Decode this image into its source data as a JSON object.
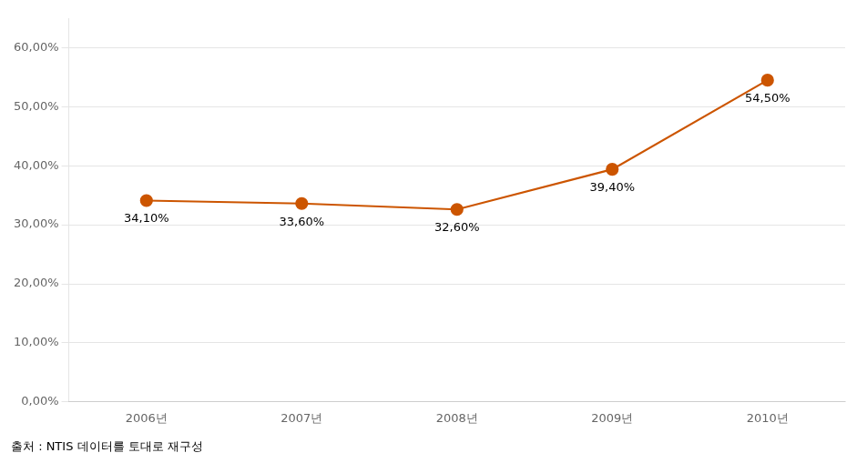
{
  "chart_data": {
    "type": "line",
    "categories": [
      "2006년",
      "2007년",
      "2008년",
      "2009년",
      "2010년"
    ],
    "values": [
      0.341,
      0.336,
      0.326,
      0.394,
      0.545
    ],
    "value_labels": [
      "34,10%",
      "33,60%",
      "32,60%",
      "39,40%",
      "54,50%"
    ],
    "data_labels": true,
    "color": "#CC5500",
    "marker": "circle",
    "ylim": [
      0,
      0.65
    ],
    "yticks": [
      {
        "value": 0.0,
        "label": "0,00%"
      },
      {
        "value": 0.1,
        "label": "10,00%"
      },
      {
        "value": 0.2,
        "label": "20,00%"
      },
      {
        "value": 0.3,
        "label": "30,00%"
      },
      {
        "value": 0.4,
        "label": "40,00%"
      },
      {
        "value": 0.5,
        "label": "50,00%"
      },
      {
        "value": 0.6,
        "label": "60,00%"
      }
    ],
    "grid": true,
    "caption": "출처 : NTIS 데이터를 토대로 재구성"
  }
}
